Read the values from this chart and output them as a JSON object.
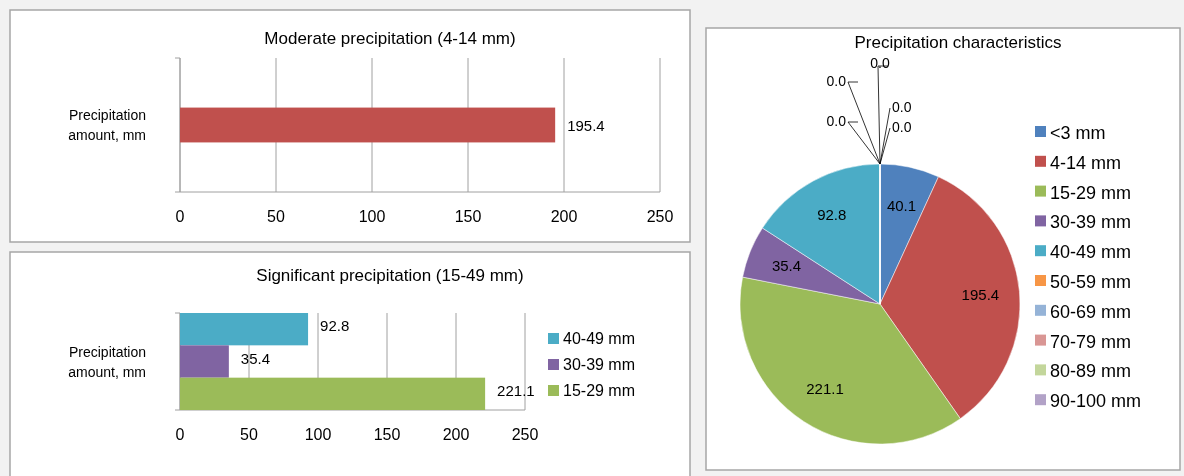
{
  "chart_data": [
    {
      "type": "bar",
      "orientation": "horizontal",
      "title": "Moderate precipitation (4-14 mm)",
      "categories": [
        "Precipitation amount, mm"
      ],
      "values": [
        195.4
      ],
      "color": "#c0504d",
      "xlim": [
        0,
        250
      ],
      "xticks": [
        0,
        50,
        100,
        150,
        200,
        250
      ],
      "grid": "x",
      "data_labels": true
    },
    {
      "type": "bar",
      "orientation": "horizontal",
      "title": "Significant precipitation (15-49 mm)",
      "categories": [
        "Precipitation amount, mm"
      ],
      "series": [
        {
          "name": "40-49 mm",
          "color": "#4bacc6",
          "values": [
            92.8
          ]
        },
        {
          "name": "30-39 mm",
          "color": "#8064a2",
          "values": [
            35.4
          ]
        },
        {
          "name": "15-29 mm",
          "color": "#9bbb59",
          "values": [
            221.1
          ]
        }
      ],
      "xlim": [
        0,
        250
      ],
      "xticks": [
        0,
        50,
        100,
        150,
        200,
        250
      ],
      "grid": "x",
      "legend": "right",
      "data_labels": true
    },
    {
      "type": "pie",
      "title": "Precipitation characteristics",
      "categories": [
        "<3 mm",
        "4-14 mm",
        "15-29 mm",
        "30-39 mm",
        "40-49 mm",
        "50-59 mm",
        "60-69 mm",
        "70-79 mm",
        "80-89 mm",
        "90-100 mm"
      ],
      "values": [
        40.1,
        195.4,
        221.1,
        35.4,
        92.8,
        0,
        0,
        0,
        0,
        0
      ],
      "value_labels": [
        "40.1",
        "195.4",
        "221.1",
        "35.4",
        "92.8",
        "0.0",
        "0.0",
        "0.0",
        "0.0",
        "0.0"
      ],
      "colors": [
        "#4f81bd",
        "#c0504d",
        "#9bbb59",
        "#8064a2",
        "#4bacc6",
        "#f79646",
        "#95b3d7",
        "#d99694",
        "#c3d69b",
        "#b2a2c7"
      ],
      "legend": "right"
    }
  ]
}
